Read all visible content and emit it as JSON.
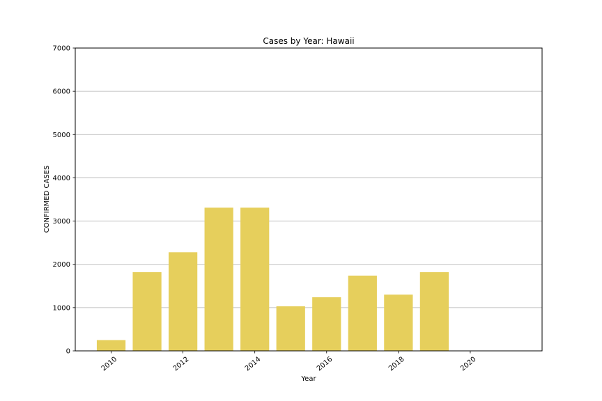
{
  "chart_data": {
    "type": "bar",
    "title": "Cases by Year: Hawaii",
    "xlabel": "Year",
    "ylabel": "CONFIRMED CASES",
    "x": [
      2010,
      2011,
      2012,
      2013,
      2014,
      2015,
      2016,
      2017,
      2018,
      2019
    ],
    "values": [
      250,
      1820,
      2280,
      3310,
      3310,
      1030,
      1240,
      1740,
      1300,
      1820
    ],
    "xlim": [
      2009.0,
      2022.0
    ],
    "ylim": [
      0,
      7000
    ],
    "x_ticks": [
      2010,
      2012,
      2014,
      2016,
      2018,
      2020
    ],
    "y_ticks": [
      0,
      1000,
      2000,
      3000,
      4000,
      5000,
      6000,
      7000
    ],
    "bar_color": "#e6cf5c",
    "grid": "horizontal",
    "legend": "none"
  }
}
